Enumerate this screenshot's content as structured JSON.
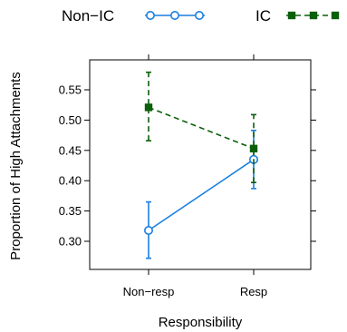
{
  "chart_data": {
    "type": "line",
    "title": "",
    "xlabel": "Responsibility",
    "ylabel": "Proportion of High Attachments",
    "categories": [
      "Non−resp",
      "Resp"
    ],
    "ylim": [
      0.25,
      0.6
    ],
    "yticks": [
      "0.30",
      "0.35",
      "0.40",
      "0.45",
      "0.50",
      "0.55"
    ],
    "grid": false,
    "legend_position": "top",
    "series": [
      {
        "name": "Non−IC",
        "color": "#1a7fe0",
        "marker": "circle",
        "line_style": "solid",
        "values": [
          0.318,
          0.435
        ],
        "error_low": [
          0.272,
          0.387
        ],
        "error_high": [
          0.365,
          0.483
        ]
      },
      {
        "name": "IC",
        "color": "#0a5f0a",
        "marker": "square",
        "line_style": "dashed",
        "values": [
          0.521,
          0.453
        ],
        "error_low": [
          0.466,
          0.397
        ],
        "error_high": [
          0.579,
          0.509
        ]
      }
    ]
  }
}
